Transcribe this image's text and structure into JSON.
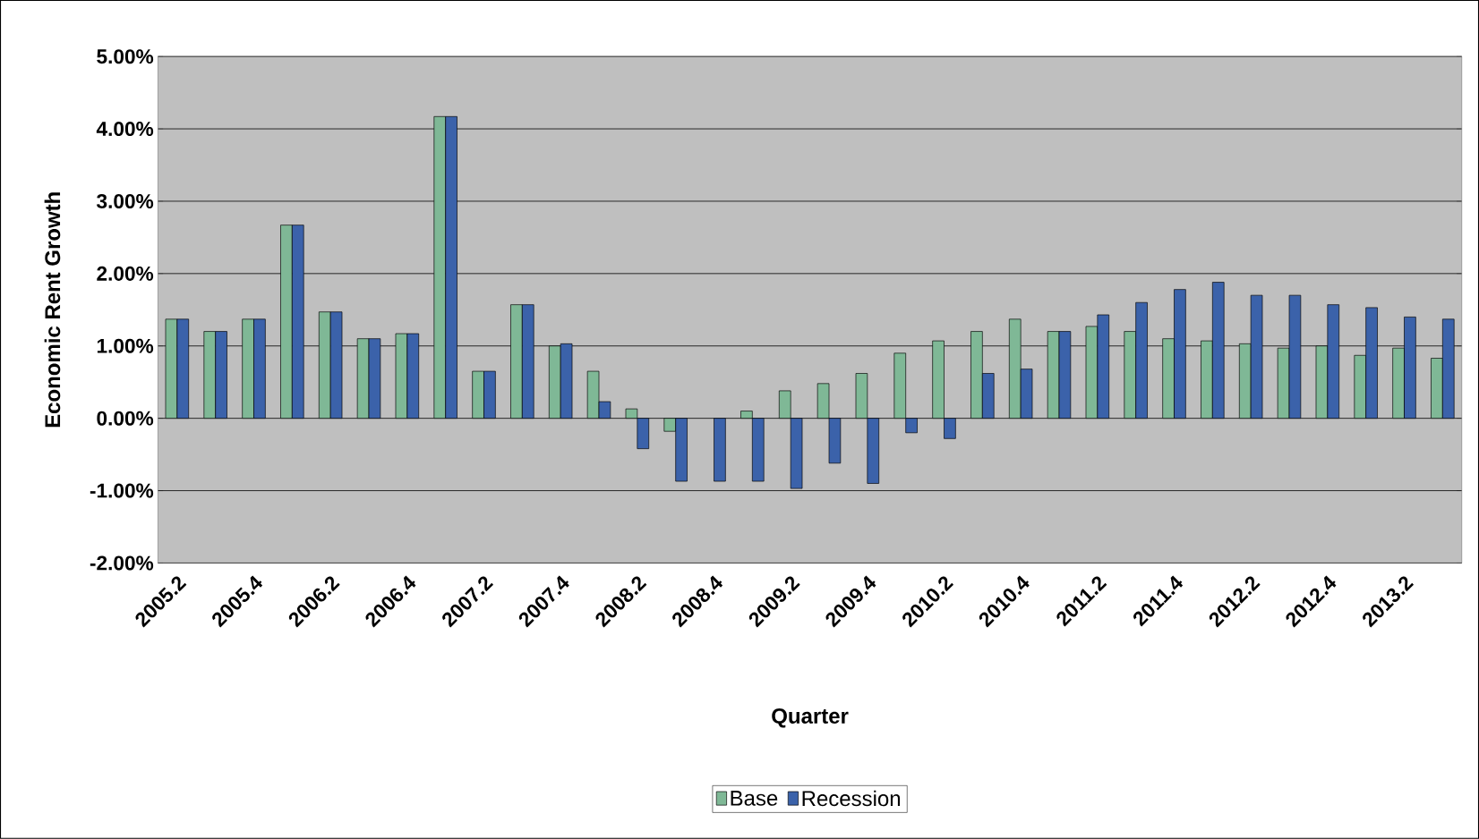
{
  "chart_data": {
    "type": "bar",
    "xlabel": "Quarter",
    "ylabel": "Economic Rent Growth",
    "categories": [
      "2005.2",
      null,
      "2005.4",
      null,
      "2006.2",
      null,
      "2006.4",
      null,
      "2007.2",
      null,
      "2007.4",
      null,
      "2008.2",
      null,
      "2008.4",
      null,
      "2009.2",
      null,
      "2009.4",
      null,
      "2010.2",
      null,
      "2010.4",
      null,
      "2011.2",
      null,
      "2011.4",
      null,
      "2012.2",
      null,
      "2012.4",
      null,
      "2013.2",
      null
    ],
    "series": [
      {
        "name": "Base",
        "color": "#7fb896",
        "values": [
          1.37,
          1.2,
          1.37,
          2.67,
          1.47,
          1.1,
          1.17,
          4.17,
          0.65,
          1.57,
          1.0,
          0.65,
          0.13,
          -0.18,
          null,
          0.1,
          0.38,
          0.48,
          0.62,
          0.9,
          1.07,
          1.2,
          1.37,
          1.2,
          1.27,
          1.2,
          1.1,
          1.07,
          1.03,
          0.97,
          1.0,
          0.87,
          0.97,
          0.83
        ]
      },
      {
        "name": "Recession",
        "color": "#3b62aa",
        "values": [
          1.37,
          1.2,
          1.37,
          2.67,
          1.47,
          1.1,
          1.17,
          4.17,
          0.65,
          1.57,
          1.03,
          0.23,
          -0.42,
          -0.87,
          -0.87,
          -0.87,
          -0.97,
          -0.62,
          -0.9,
          -0.2,
          -0.28,
          0.62,
          0.68,
          1.2,
          1.43,
          1.6,
          1.78,
          1.88,
          1.7,
          1.7,
          1.57,
          1.53,
          1.4,
          1.37
        ]
      }
    ],
    "ylim": [
      -2,
      5
    ],
    "yticks": [
      {
        "value": -2,
        "label": "-2.00%"
      },
      {
        "value": -1,
        "label": "-1.00%"
      },
      {
        "value": 0,
        "label": "0.00%"
      },
      {
        "value": 1,
        "label": "1.00%"
      },
      {
        "value": 2,
        "label": "2.00%"
      },
      {
        "value": 3,
        "label": "3.00%"
      },
      {
        "value": 4,
        "label": "4.00%"
      },
      {
        "value": 5,
        "label": "5.00%"
      }
    ],
    "grid": "y",
    "legend": "bottom"
  }
}
